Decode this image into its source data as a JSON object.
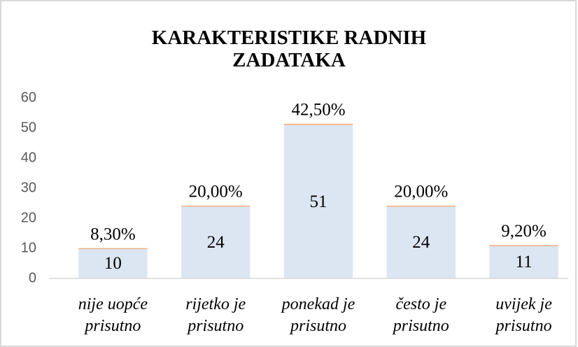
{
  "chart_data": {
    "type": "stacked_bar",
    "title": "KARAKTERISTIKE RADNIH ZADATAKA",
    "categories": [
      "nije uopće prisutno",
      "rijetko je prisutno",
      "ponekad je prisutno",
      "često je prisutno",
      "uvijek je prisutno"
    ],
    "series": [
      {
        "color": "#dce6f2",
        "values": [
          10,
          24,
          51,
          24,
          11
        ]
      },
      {
        "color": "#f4b183",
        "values": [
          0.083,
          0.2,
          0.425,
          0.2,
          0.092
        ],
        "value_labels": [
          "8,30%",
          "20,00%",
          "42,50%",
          "20,00%",
          "9,20%"
        ]
      }
    ],
    "ylim": [
      0,
      60
    ],
    "yticks": [
      0,
      10,
      20,
      30,
      40,
      50,
      60
    ],
    "grid": false
  }
}
